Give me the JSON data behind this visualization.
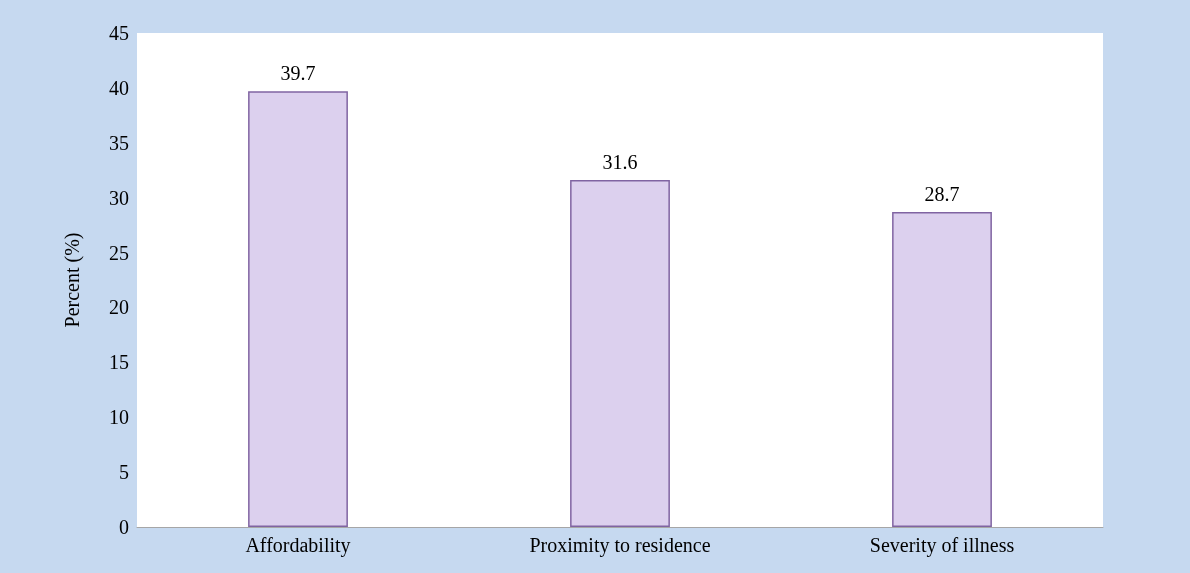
{
  "chart_data": {
    "type": "bar",
    "ylabel": "Percent (%)",
    "categories": [
      "Affordability",
      "Proximity to residence",
      "Severity of illness"
    ],
    "values": [
      39.7,
      31.6,
      28.7
    ],
    "color": "#dcd0ee",
    "ylim": [
      0,
      45
    ],
    "yticks": [
      0,
      5,
      10,
      15,
      20,
      25,
      30,
      35,
      40,
      45
    ],
    "grid": false,
    "data_labels": true
  }
}
